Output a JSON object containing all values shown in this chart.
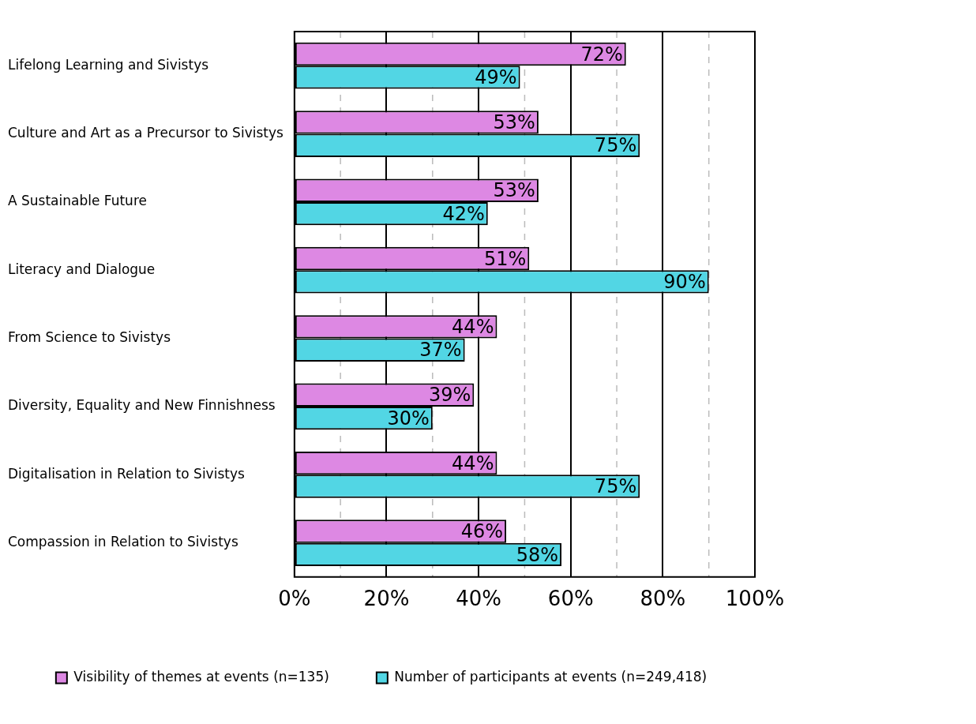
{
  "chart_data": {
    "type": "bar",
    "orientation": "horizontal",
    "categories": [
      "Lifelong Learning and Sivistys",
      "Culture and Art as a Precursor to Sivistys",
      "A Sustainable Future",
      "Literacy and Dialogue",
      "From Science to Sivistys",
      "Diversity, Equality and New Finnishness",
      "Digitalisation in Relation to Sivistys",
      "Compassion in Relation to Sivistys"
    ],
    "series": [
      {
        "name": "Visibility of themes at events (n=135)",
        "color": "#dd88e3",
        "values": [
          72,
          53,
          53,
          51,
          44,
          39,
          44,
          46
        ],
        "value_labels": [
          "72%",
          "53%",
          "53%",
          "51%",
          "44%",
          "39%",
          "44%",
          "46%"
        ]
      },
      {
        "name": "Number of participants at events (n=249,418)",
        "color": "#52d6e4",
        "values": [
          49,
          75,
          42,
          90,
          37,
          30,
          75,
          58
        ],
        "value_labels": [
          "49%",
          "75%",
          "42%",
          "90%",
          "37%",
          "30%",
          "75%",
          "58%"
        ]
      }
    ],
    "xlim": [
      0,
      100
    ],
    "xticks": [
      {
        "value": 0,
        "label": "0%"
      },
      {
        "value": 10,
        "label": null
      },
      {
        "value": 20,
        "label": "20%"
      },
      {
        "value": 30,
        "label": null
      },
      {
        "value": 40,
        "label": "40%"
      },
      {
        "value": 50,
        "label": null
      },
      {
        "value": 60,
        "label": "60%"
      },
      {
        "value": 70,
        "label": null
      },
      {
        "value": 80,
        "label": "80%"
      },
      {
        "value": 90,
        "label": null
      },
      {
        "value": 100,
        "label": "100%"
      }
    ],
    "grid": "x",
    "legend": "bottom"
  }
}
